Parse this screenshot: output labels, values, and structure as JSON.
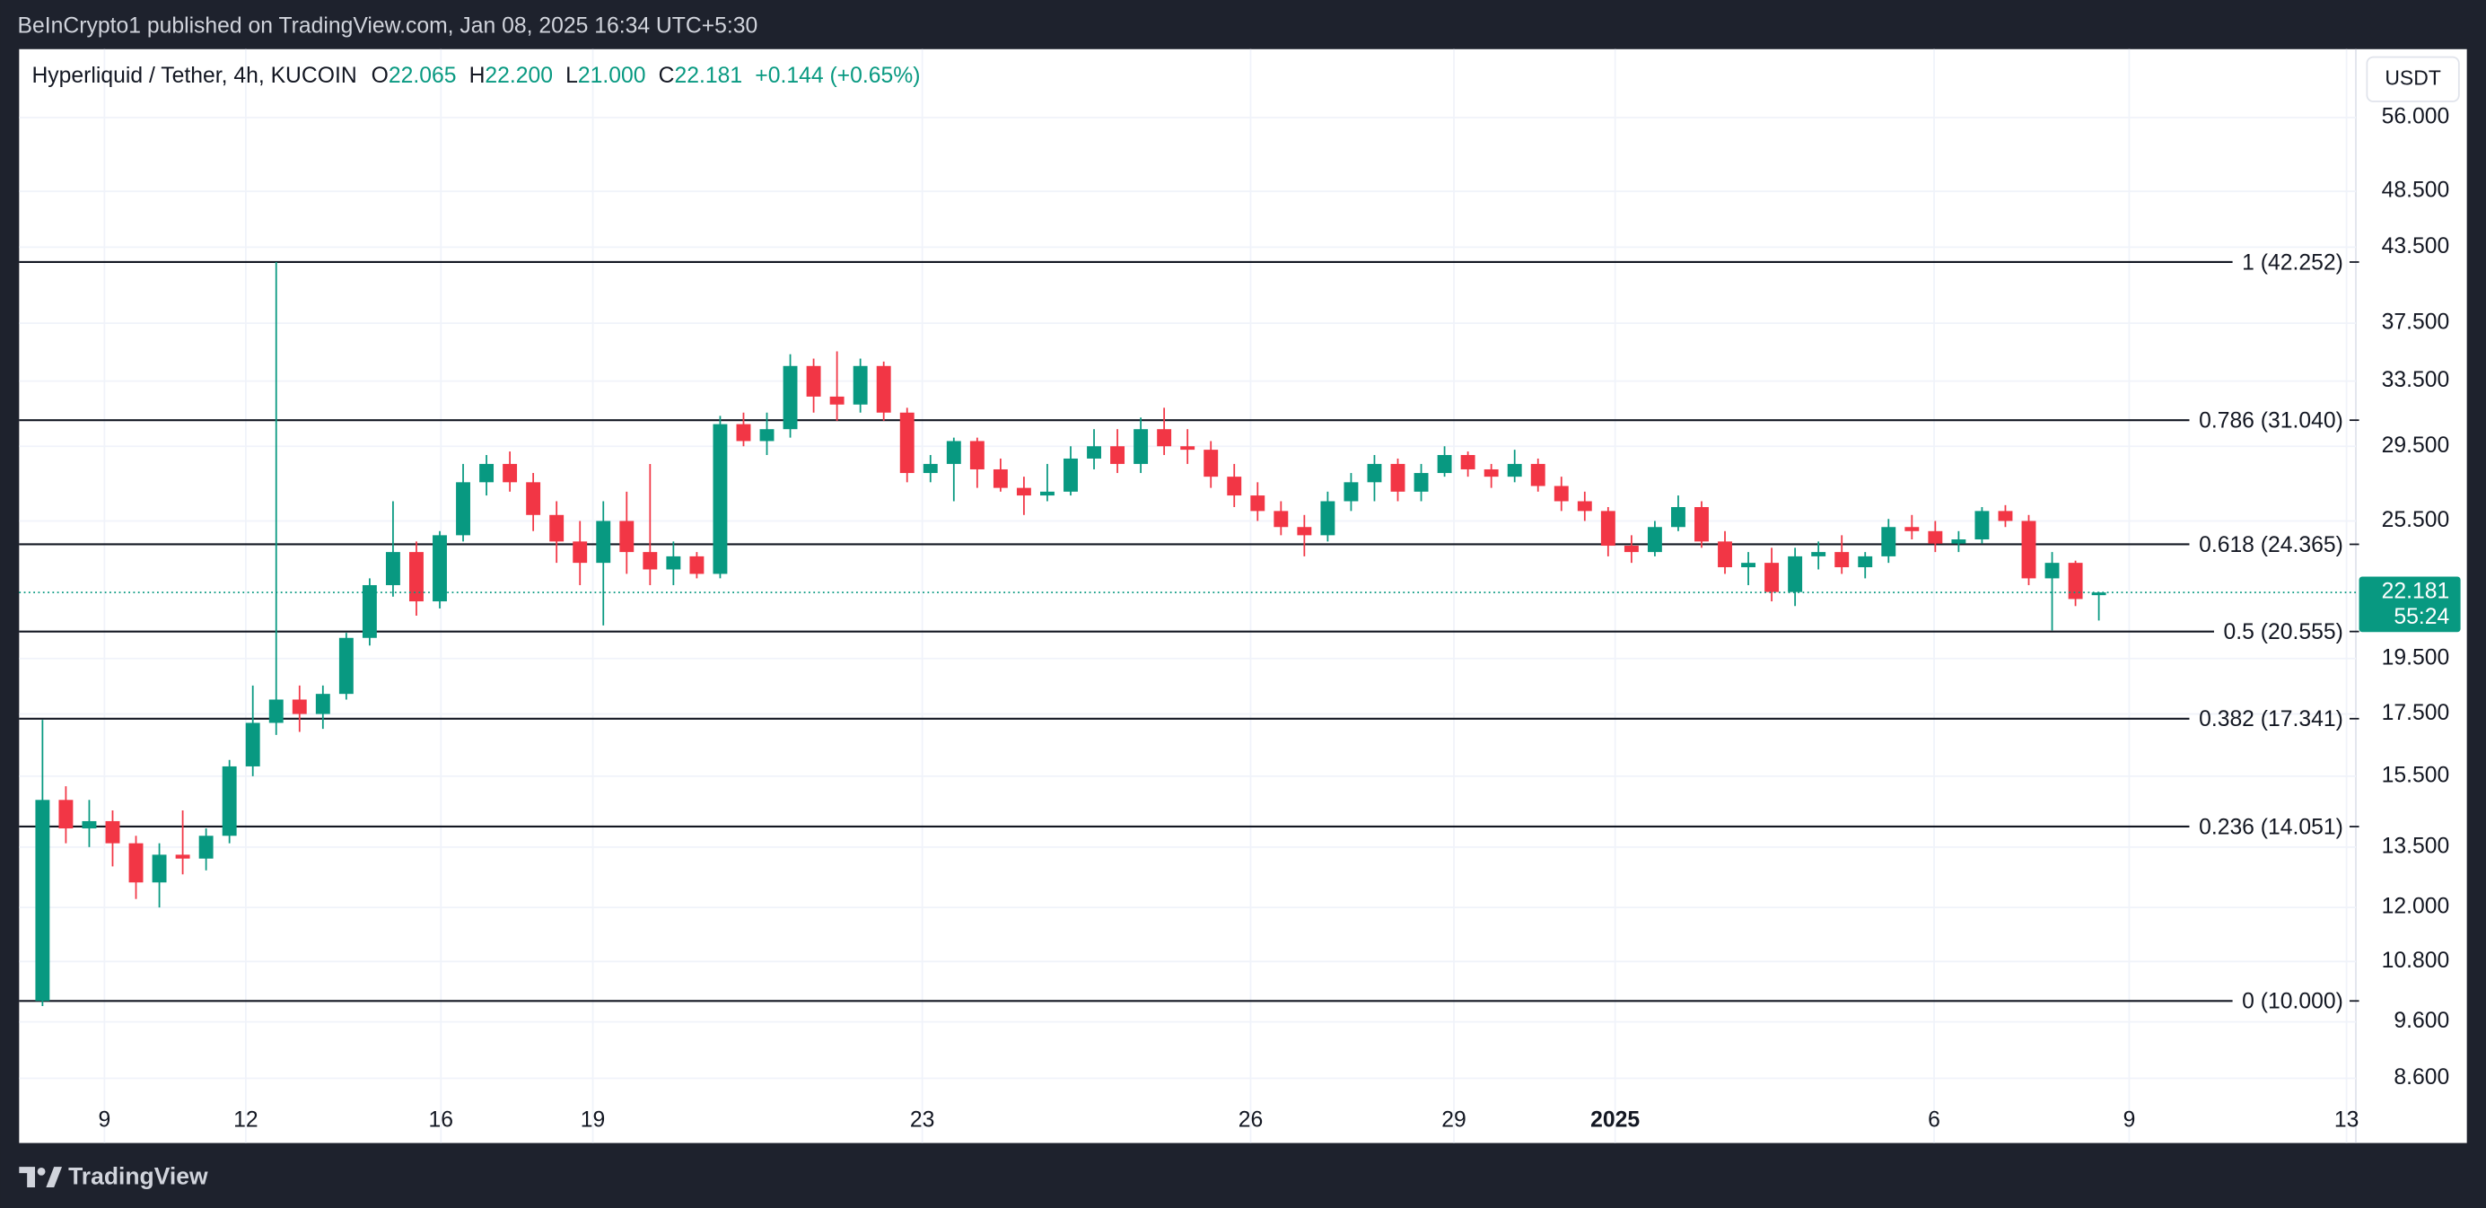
{
  "header": {
    "publisher": "BeInCrypto1 published on TradingView.com, Jan 08, 2025 16:34 UTC+5:30",
    "footer": "TradingView"
  },
  "chart_data": {
    "type": "candlestick",
    "symbol": "Hyperliquid / Tether, 4h, KUCOIN",
    "ohlc_legend": [
      {
        "key": "O",
        "text": "22.065"
      },
      {
        "key": "H",
        "text": "22.200"
      },
      {
        "key": "L",
        "text": "21.000"
      },
      {
        "key": "C",
        "text": "22.181"
      }
    ],
    "change": "+0.144 (+0.65%)",
    "currency": "USDT",
    "last_price": 22.181,
    "countdown": "55:24",
    "up_color": "#089981",
    "down_color": "#f23645",
    "log_scale": true,
    "grid": true,
    "ylim": [
      7.58,
      64
    ],
    "yticks": [
      {
        "value": 56,
        "label": "56.000"
      },
      {
        "value": 48.5,
        "label": "48.500"
      },
      {
        "value": 43.5,
        "label": "43.500"
      },
      {
        "value": 37.5,
        "label": "37.500"
      },
      {
        "value": 33.5,
        "label": "33.500"
      },
      {
        "value": 29.5,
        "label": "29.500"
      },
      {
        "value": 25.5,
        "label": "25.500"
      },
      {
        "value": 19.5,
        "label": "19.500"
      },
      {
        "value": 17.5,
        "label": "17.500"
      },
      {
        "value": 15.5,
        "label": "15.500"
      },
      {
        "value": 13.5,
        "label": "13.500"
      },
      {
        "value": 12,
        "label": "12.000"
      },
      {
        "value": 10.8,
        "label": "10.800"
      },
      {
        "value": 9.6,
        "label": "9.600"
      },
      {
        "value": 8.6,
        "label": "8.600"
      }
    ],
    "xlim": [
      0,
      200
    ],
    "xticks": [
      {
        "value": 7.3,
        "label": "9"
      },
      {
        "value": 19.4,
        "label": "12"
      },
      {
        "value": 36.1,
        "label": "16"
      },
      {
        "value": 49.1,
        "label": "19"
      },
      {
        "value": 77.3,
        "label": "23"
      },
      {
        "value": 105.4,
        "label": "26"
      },
      {
        "value": 122.8,
        "label": "29"
      },
      {
        "value": 136.6,
        "label": "2025"
      },
      {
        "value": 163.9,
        "label": "6"
      },
      {
        "value": 180.6,
        "label": "9"
      },
      {
        "value": 199.2,
        "label": "13"
      }
    ],
    "fib_levels": [
      {
        "value": 42.252,
        "label": "1 (42.252)"
      },
      {
        "value": 31.04,
        "label": "0.786 (31.040)"
      },
      {
        "value": 24.365,
        "label": "0.618 (24.365)"
      },
      {
        "value": 20.555,
        "label": "0.5 (20.555)"
      },
      {
        "value": 17.341,
        "label": "0.382 (17.341)"
      },
      {
        "value": 14.051,
        "label": "0.236 (14.051)"
      },
      {
        "value": 10,
        "label": "0 (10.000)"
      }
    ],
    "candles": {
      "x": [
        2,
        4,
        6,
        8,
        10,
        12,
        14,
        16,
        18,
        20,
        22,
        24,
        26,
        28,
        30,
        32,
        34,
        36,
        38,
        40,
        42,
        44,
        46,
        48,
        50,
        52,
        54,
        56,
        58,
        60,
        62,
        64,
        66,
        68,
        70,
        72,
        74,
        76,
        78,
        80,
        82,
        84,
        86,
        88,
        90,
        92,
        94,
        96,
        98,
        100,
        102,
        104,
        106,
        108,
        110,
        112,
        114,
        116,
        118,
        120,
        122,
        124,
        126,
        128,
        130,
        132,
        134,
        136,
        138,
        140,
        142,
        144,
        146,
        148,
        150,
        152,
        154,
        156,
        158,
        160,
        162,
        164,
        166,
        168,
        170,
        172,
        174,
        176,
        178
      ],
      "open": [
        10,
        14.8,
        14,
        14.2,
        13.6,
        12.6,
        13.3,
        13.2,
        13.8,
        15.8,
        17.2,
        18,
        17.5,
        18.2,
        20.3,
        22.5,
        24,
        21.8,
        24.8,
        27.5,
        28.5,
        27.5,
        25.8,
        24.5,
        23.5,
        25.5,
        24,
        23.2,
        23.8,
        23,
        30.8,
        29.8,
        30.5,
        34.5,
        32.5,
        32,
        34.5,
        31.5,
        28,
        28.5,
        29.8,
        28.2,
        27.2,
        26.8,
        27,
        28.8,
        29.5,
        28.5,
        30.5,
        29.5,
        29.3,
        27.8,
        26.8,
        26,
        25.2,
        24.8,
        26.5,
        27.5,
        28.5,
        27,
        28,
        29,
        28.2,
        27.8,
        28.5,
        27.3,
        26.5,
        26,
        24.3,
        24,
        25.2,
        26.2,
        24.5,
        23.3,
        23.5,
        22.2,
        23.8,
        24,
        23.3,
        23.8,
        25.2,
        25,
        24.4,
        24.6,
        26,
        25.5,
        22.8,
        23.5,
        22.065
      ],
      "high": [
        17.3,
        15.2,
        14.8,
        14.5,
        13.8,
        13.6,
        14.5,
        14,
        16,
        18.5,
        42.252,
        18.5,
        18.5,
        20.5,
        22.8,
        26.5,
        24.5,
        25,
        28.5,
        29,
        29.2,
        28,
        26.5,
        25.5,
        26.5,
        27,
        28.5,
        24.5,
        24,
        31.3,
        31.5,
        31.5,
        35.3,
        35,
        35.5,
        35,
        34.8,
        31.8,
        29,
        30,
        30,
        28.8,
        27.8,
        28.5,
        29.5,
        30.5,
        30.5,
        31.2,
        31.8,
        30.5,
        29.8,
        28.5,
        27.5,
        26.5,
        25.8,
        27,
        28,
        29,
        28.8,
        28.5,
        29.5,
        29.2,
        28.5,
        29.3,
        28.8,
        27.8,
        27,
        26.2,
        24.8,
        25.5,
        26.8,
        26.5,
        25,
        24,
        24.2,
        24.2,
        24.5,
        24.8,
        24,
        25.6,
        25.8,
        25.5,
        25,
        26.2,
        26.3,
        25.8,
        24,
        23.6,
        22.2
      ],
      "low": [
        9.9,
        13.6,
        13.5,
        13,
        12.2,
        12,
        12.8,
        12.9,
        13.6,
        15.5,
        16.8,
        16.9,
        17,
        18,
        20,
        22,
        21.2,
        21.5,
        24.5,
        26.8,
        27,
        25,
        23.5,
        22.5,
        20.8,
        23,
        22.5,
        22.5,
        22.8,
        22.8,
        29.5,
        29,
        30,
        31.5,
        31,
        31.5,
        31,
        27.5,
        27.5,
        26.5,
        27.2,
        27,
        25.8,
        26.5,
        26.8,
        28.2,
        28,
        28,
        29,
        28.5,
        27.2,
        26.2,
        25.5,
        24.8,
        23.8,
        24.5,
        26,
        26.5,
        26.5,
        26.5,
        27.8,
        27.8,
        27.2,
        27.5,
        27,
        26,
        25.5,
        23.8,
        23.5,
        23.8,
        25,
        24.2,
        23,
        22.5,
        21.8,
        21.6,
        23.2,
        23,
        22.8,
        23.5,
        24.6,
        24,
        24,
        24.4,
        25.2,
        22.5,
        20.6,
        21.6,
        21
      ],
      "close": [
        14.8,
        14,
        14.2,
        13.6,
        12.6,
        13.3,
        13.2,
        13.8,
        15.8,
        17.2,
        18,
        17.5,
        18.2,
        20.3,
        22.5,
        24,
        21.8,
        24.8,
        27.5,
        28.5,
        27.5,
        25.8,
        24.5,
        23.5,
        25.5,
        24,
        23.2,
        23.8,
        23,
        30.8,
        29.8,
        30.5,
        34.5,
        32.5,
        32,
        34.5,
        31.5,
        28,
        28.5,
        29.8,
        28.2,
        27.2,
        26.8,
        27,
        28.8,
        29.5,
        28.5,
        30.5,
        29.5,
        29.3,
        27.8,
        26.8,
        26,
        25.2,
        24.8,
        26.5,
        27.5,
        28.5,
        27,
        28,
        29,
        28.2,
        27.8,
        28.5,
        27.3,
        26.5,
        26,
        24.3,
        24,
        25.2,
        26.2,
        24.5,
        23.3,
        23.5,
        22.2,
        23.8,
        24,
        23.3,
        23.8,
        25.2,
        25,
        24.4,
        24.6,
        26,
        25.5,
        22.8,
        23.5,
        21.9,
        22.181
      ]
    }
  }
}
